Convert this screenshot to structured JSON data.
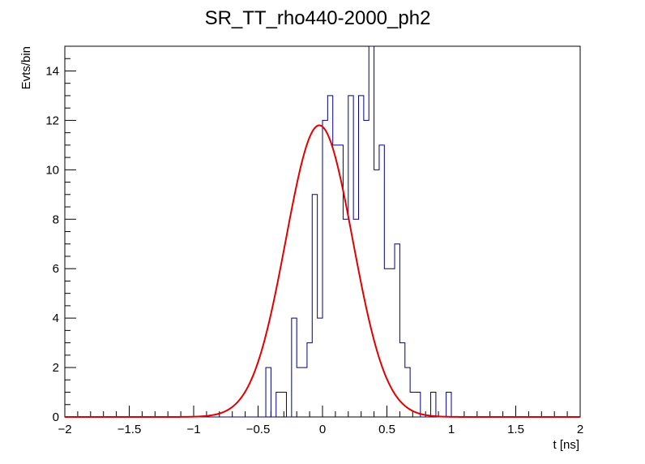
{
  "chart_data": {
    "type": "histogram",
    "title": "SR_TT_rho440-2000_ph2",
    "xlabel": "t [ns]",
    "ylabel": "Evts/bin",
    "xlim": [
      -2,
      2
    ],
    "ylim": [
      0,
      15
    ],
    "x_ticks": [
      -2,
      -1.5,
      -1,
      -0.5,
      0,
      0.5,
      1,
      1.5,
      2
    ],
    "x_tick_labels": [
      "−2",
      "−1.5",
      "−1",
      "−0.5",
      "0",
      "0.5",
      "1",
      "1.5",
      "2"
    ],
    "y_ticks": [
      0,
      2,
      4,
      6,
      8,
      10,
      12,
      14
    ],
    "y_tick_labels": [
      "0",
      "2",
      "4",
      "6",
      "8",
      "10",
      "12",
      "14"
    ],
    "grid": false,
    "legend": "none",
    "histogram": {
      "bin_width": 0.04,
      "x_start": -2.0,
      "values": [
        0,
        0,
        0,
        0,
        0,
        0,
        0,
        0,
        0,
        0,
        0,
        0,
        0,
        0,
        0,
        0,
        0,
        0,
        0,
        0,
        0,
        0,
        0,
        0,
        0,
        0,
        0,
        0,
        0,
        0,
        0,
        0,
        0,
        0,
        0,
        0,
        0,
        0,
        0,
        2,
        0,
        1,
        1,
        0,
        4,
        2,
        2,
        3,
        9,
        4,
        12,
        13,
        11,
        11,
        8,
        13,
        8,
        13,
        12,
        15,
        10,
        11,
        6,
        6,
        7,
        3,
        2,
        1,
        1,
        0,
        0,
        1,
        0,
        0,
        1,
        0,
        0,
        0,
        0,
        0,
        0,
        0,
        0,
        0,
        0,
        0,
        0,
        0,
        0,
        0,
        0,
        0,
        0,
        0,
        0,
        0,
        0,
        0,
        0,
        0
      ],
      "color": "#000080"
    },
    "fit": {
      "function": "gaussian",
      "amplitude": 11.8,
      "mean": -0.025,
      "sigma": 0.26,
      "color": "#e00000"
    }
  }
}
